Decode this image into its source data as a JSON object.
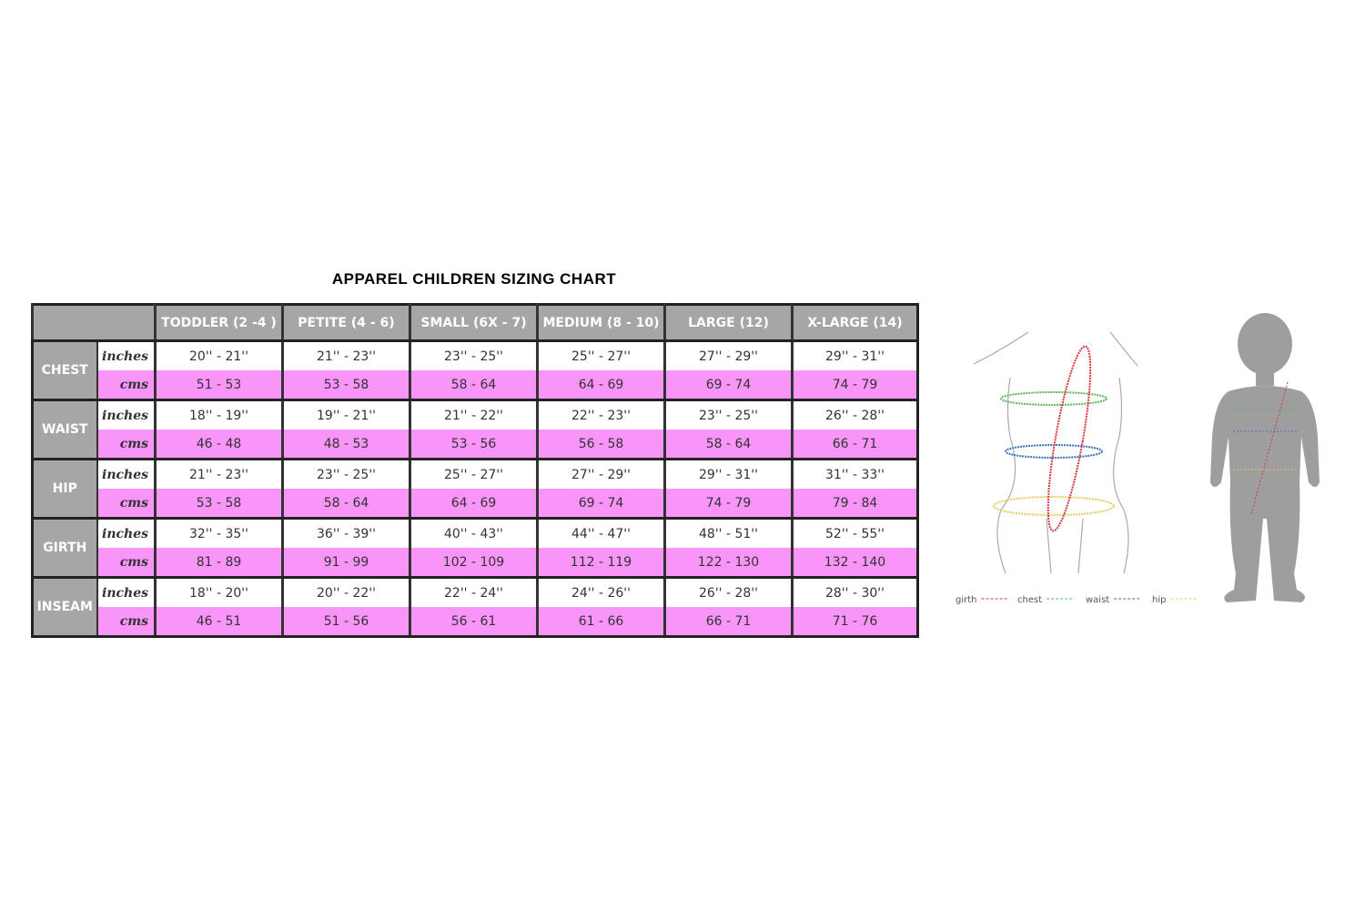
{
  "header": {
    "title": "APPAREL CHILDREN SIZING CHART"
  },
  "table": {
    "columns": [
      "TODDLER (2 -4 )",
      "PETITE (4 - 6)",
      "SMALL (6X - 7)",
      "MEDIUM (8 - 10)",
      "LARGE (12)",
      "X-LARGE (14)"
    ],
    "groups": [
      {
        "label": "CHEST",
        "rows": [
          {
            "unit": "inches",
            "values": [
              "20'' - 21''",
              "21'' - 23''",
              "23'' - 25''",
              "25'' - 27''",
              "27'' - 29''",
              "29'' - 31''"
            ]
          },
          {
            "unit": "cms",
            "values": [
              "51 - 53",
              "53 - 58",
              "58 - 64",
              "64 - 69",
              "69 - 74",
              "74 - 79"
            ]
          }
        ]
      },
      {
        "label": "WAIST",
        "rows": [
          {
            "unit": "inches",
            "values": [
              "18'' - 19''",
              "19'' - 21''",
              "21'' - 22''",
              "22'' - 23''",
              "23'' - 25''",
              "26'' - 28''"
            ]
          },
          {
            "unit": "cms",
            "values": [
              "46 - 48",
              "48 - 53",
              "53 - 56",
              "56 - 58",
              "58 - 64",
              "66 - 71"
            ]
          }
        ]
      },
      {
        "label": "HIP",
        "rows": [
          {
            "unit": "inches",
            "values": [
              "21'' - 23''",
              "23'' - 25''",
              "25'' - 27''",
              "27'' - 29''",
              "29'' - 31''",
              "31'' - 33''"
            ]
          },
          {
            "unit": "cms",
            "values": [
              "53 - 58",
              "58 - 64",
              "64 - 69",
              "69 - 74",
              "74 - 79",
              "79 - 84"
            ]
          }
        ]
      },
      {
        "label": "GIRTH",
        "rows": [
          {
            "unit": "inches",
            "values": [
              "32'' - 35''",
              "36'' - 39''",
              "40'' - 43''",
              "44'' - 47''",
              "48'' - 51''",
              "52'' - 55''"
            ]
          },
          {
            "unit": "cms",
            "values": [
              "81 - 89",
              "91 - 99",
              "102 - 109",
              "112 - 119",
              "122 - 130",
              "132 - 140"
            ]
          }
        ]
      },
      {
        "label": "INSEAM",
        "rows": [
          {
            "unit": "inches",
            "values": [
              "18'' - 20''",
              "20'' - 22''",
              "22'' - 24''",
              "24'' - 26''",
              "26'' - 28''",
              "28'' - 30''"
            ]
          },
          {
            "unit": "cms",
            "values": [
              "46 - 51",
              "51 - 56",
              "56 - 61",
              "61 - 66",
              "66 - 71",
              "71 - 76"
            ]
          }
        ]
      }
    ]
  },
  "legend": [
    "girth",
    "chest",
    "waist",
    "hip"
  ]
}
